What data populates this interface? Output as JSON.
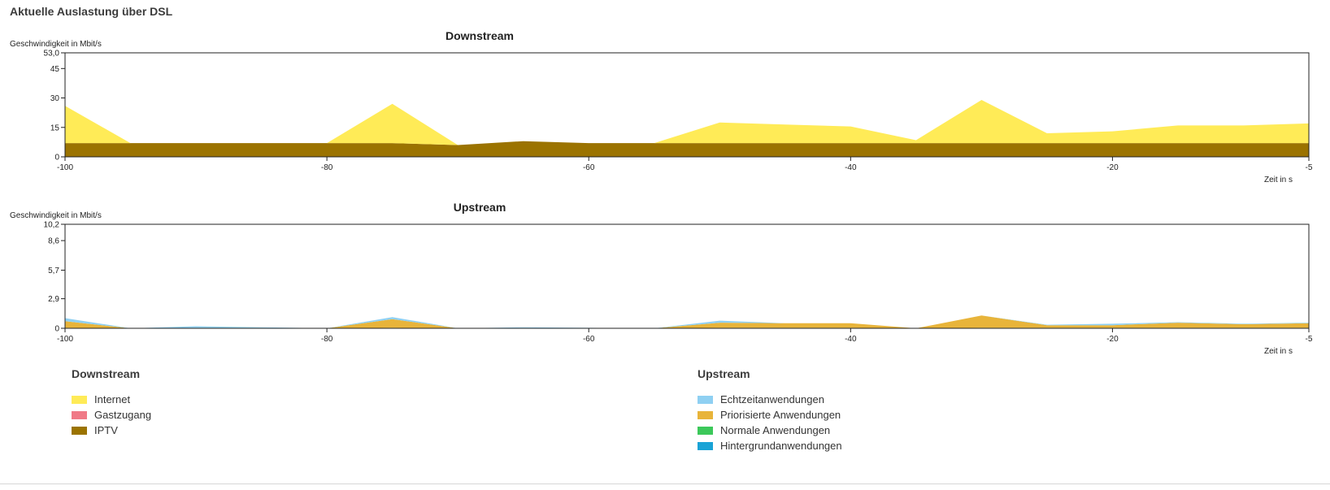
{
  "page": {
    "title": "Aktuelle Auslastung über DSL"
  },
  "chart_data": [
    {
      "id": "downstream",
      "type": "area",
      "stacked": true,
      "title": "Downstream",
      "ylabel": "Geschwindigkeit in Mbit/s",
      "xlabel": "Zeit in s",
      "x": [
        -100,
        -95,
        -90,
        -85,
        -80,
        -75,
        -70,
        -65,
        -60,
        -55,
        -50,
        -45,
        -40,
        -35,
        -30,
        -25,
        -20,
        -15,
        -10,
        -5
      ],
      "xticks": [
        -100,
        -80,
        -60,
        -40,
        -20,
        -5
      ],
      "ylim": [
        0,
        53
      ],
      "yticks": [
        0,
        15,
        30,
        45,
        53
      ],
      "ytick_labels": [
        "0",
        "15",
        "30",
        "45",
        "53,0"
      ],
      "series": [
        {
          "name": "IPTV",
          "color": "#9b7300",
          "values": [
            7,
            7,
            7,
            7,
            7,
            7,
            6,
            8,
            7,
            7,
            7,
            7,
            7,
            7,
            7,
            7,
            7,
            7,
            7,
            7
          ]
        },
        {
          "name": "Gastzugang",
          "color": "#f07a87",
          "values": [
            0,
            0,
            0,
            0,
            0,
            0,
            0,
            0,
            0,
            0,
            0,
            0,
            0,
            0,
            0,
            0,
            0,
            0,
            0,
            0
          ]
        },
        {
          "name": "Internet",
          "color": "#ffeb57",
          "values": [
            19,
            0,
            0,
            0,
            0,
            20,
            0,
            0,
            0,
            0,
            10.5,
            9.5,
            8.5,
            1.5,
            22,
            5,
            6,
            9,
            9,
            10
          ]
        }
      ]
    },
    {
      "id": "upstream",
      "type": "area",
      "stacked": true,
      "title": "Upstream",
      "ylabel": "Geschwindigkeit in Mbit/s",
      "xlabel": "Zeit in s",
      "x": [
        -100,
        -95,
        -90,
        -85,
        -80,
        -75,
        -70,
        -65,
        -60,
        -55,
        -50,
        -45,
        -40,
        -35,
        -30,
        -25,
        -20,
        -15,
        -10,
        -5
      ],
      "xticks": [
        -100,
        -80,
        -60,
        -40,
        -20,
        -5
      ],
      "ylim": [
        0,
        10.2
      ],
      "yticks": [
        0,
        2.9,
        5.7,
        8.6,
        10.2
      ],
      "ytick_labels": [
        "0",
        "2,9",
        "5,7",
        "8,6",
        "10,2"
      ],
      "series": [
        {
          "name": "Normale Anwendungen",
          "color": "#3cc85a",
          "values": [
            0.05,
            0,
            0.05,
            0.05,
            0,
            0.05,
            0,
            0.05,
            0,
            0,
            0.05,
            0.05,
            0.05,
            0,
            0.05,
            0.05,
            0.05,
            0.05,
            0.05,
            0.05
          ]
        },
        {
          "name": "Priorisierte Anwendungen",
          "color": "#e8b43a",
          "values": [
            0.65,
            0,
            0,
            0,
            0,
            0.85,
            0,
            0,
            0,
            0,
            0.5,
            0.45,
            0.45,
            0,
            1.2,
            0.25,
            0.25,
            0.5,
            0.35,
            0.45
          ]
        },
        {
          "name": "Hintergrundanwendungen",
          "color": "#1aa3d6",
          "values": [
            0,
            0,
            0,
            0,
            0,
            0,
            0,
            0,
            0,
            0,
            0,
            0,
            0,
            0,
            0,
            0,
            0,
            0,
            0,
            0
          ]
        },
        {
          "name": "Echtzeitanwendungen",
          "color": "#8fd0f2",
          "values": [
            0.3,
            0,
            0.15,
            0.05,
            0,
            0.2,
            0,
            0.05,
            0.05,
            0,
            0.2,
            0,
            0,
            0,
            0,
            0.05,
            0.15,
            0.05,
            0.05,
            0.05
          ]
        }
      ]
    }
  ],
  "legends": {
    "downstream": {
      "heading": "Downstream",
      "items": [
        {
          "label": "Internet",
          "color": "#ffeb57"
        },
        {
          "label": "Gastzugang",
          "color": "#f07a87"
        },
        {
          "label": "IPTV",
          "color": "#9b7300"
        }
      ]
    },
    "upstream": {
      "heading": "Upstream",
      "items": [
        {
          "label": "Echtzeitanwendungen",
          "color": "#8fd0f2"
        },
        {
          "label": "Priorisierte Anwendungen",
          "color": "#e8b43a"
        },
        {
          "label": "Normale Anwendungen",
          "color": "#3cc85a"
        },
        {
          "label": "Hintergrundanwendungen",
          "color": "#1aa3d6"
        }
      ]
    }
  }
}
